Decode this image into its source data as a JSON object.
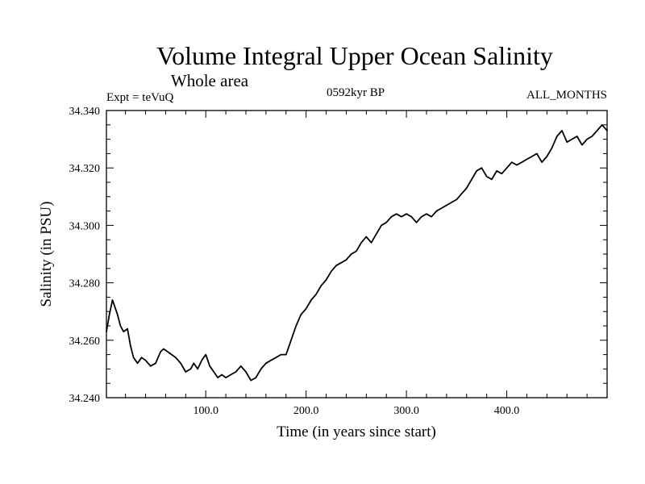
{
  "chart_data": {
    "type": "line",
    "title": "Volume Integral Upper Ocean Salinity",
    "subtitle": "Whole area",
    "experiment_label": "Expt = teVuQ",
    "period_label": "0592kyr BP",
    "months_label": "ALL_MONTHS",
    "xlabel": "Time (in years since start)",
    "ylabel": "Salinity (in PSU)",
    "xlim": [
      1,
      500
    ],
    "ylim": [
      34.24,
      34.34
    ],
    "x_ticks": [
      100,
      200,
      300,
      400
    ],
    "x_tick_labels": [
      "100.0",
      "200.0",
      "300.0",
      "400.0"
    ],
    "y_ticks": [
      34.24,
      34.26,
      34.28,
      34.3,
      34.32,
      34.34
    ],
    "y_tick_labels": [
      "34.240",
      "34.260",
      "34.280",
      "34.300",
      "34.320",
      "34.340"
    ],
    "grid": false,
    "legend": "none",
    "line_color": "#000000",
    "series": [
      {
        "x": [
          1,
          4,
          7,
          9,
          12,
          15,
          18,
          22,
          25,
          28,
          32,
          36,
          40,
          45,
          50,
          55,
          58,
          62,
          66,
          70,
          75,
          80,
          85,
          88,
          92,
          96,
          100,
          104,
          108,
          112,
          116,
          120,
          125,
          130,
          135,
          140,
          145,
          150,
          155,
          160,
          165,
          170,
          175,
          180,
          185,
          190,
          195,
          200,
          205,
          210,
          215,
          220,
          225,
          230,
          235,
          240,
          245,
          250,
          255,
          260,
          265,
          270,
          275,
          280,
          285,
          290,
          295,
          300,
          305,
          310,
          315,
          320,
          325,
          330,
          335,
          340,
          345,
          350,
          355,
          360,
          365,
          370,
          375,
          380,
          385,
          390,
          395,
          400,
          405,
          410,
          415,
          420,
          425,
          430,
          435,
          440,
          445,
          450,
          455,
          460,
          465,
          470,
          475,
          480,
          485,
          490,
          495,
          500
        ],
        "y": [
          34.263,
          34.269,
          34.274,
          34.272,
          34.269,
          34.265,
          34.263,
          34.264,
          34.258,
          34.254,
          34.252,
          34.254,
          34.253,
          34.251,
          34.252,
          34.256,
          34.257,
          34.256,
          34.255,
          34.254,
          34.252,
          34.249,
          34.25,
          34.252,
          34.25,
          34.253,
          34.255,
          34.251,
          34.249,
          34.247,
          34.248,
          34.247,
          34.248,
          34.249,
          34.251,
          34.249,
          34.246,
          34.247,
          34.25,
          34.252,
          34.253,
          34.254,
          34.255,
          34.255,
          34.26,
          34.265,
          34.269,
          34.271,
          34.274,
          34.276,
          34.279,
          34.281,
          34.284,
          34.286,
          34.287,
          34.288,
          34.29,
          34.291,
          34.294,
          34.296,
          34.294,
          34.297,
          34.3,
          34.301,
          34.303,
          34.304,
          34.303,
          34.304,
          34.303,
          34.301,
          34.303,
          34.304,
          34.303,
          34.305,
          34.306,
          34.307,
          34.308,
          34.309,
          34.311,
          34.313,
          34.316,
          34.319,
          34.32,
          34.317,
          34.316,
          34.319,
          34.318,
          34.32,
          34.322,
          34.321,
          34.322,
          34.323,
          34.324,
          34.325,
          34.322,
          34.324,
          34.327,
          34.331,
          34.333,
          34.329,
          34.33,
          34.331,
          34.328,
          34.33,
          34.331,
          34.333,
          34.335,
          34.333
        ]
      }
    ]
  }
}
